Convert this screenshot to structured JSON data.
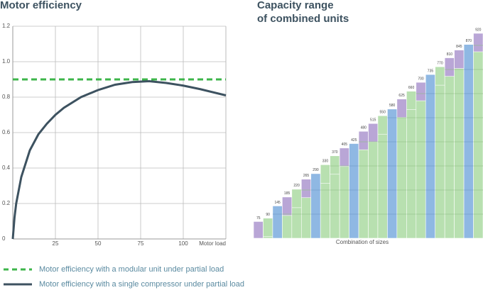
{
  "chart_data": [
    {
      "type": "line",
      "title": "Motor efficiency",
      "xlabel": "Motor load",
      "xlim": [
        0,
        125
      ],
      "xticks": [
        25,
        50,
        75,
        100
      ],
      "ylim": [
        0,
        1.2
      ],
      "yticks": [
        0,
        0.2,
        0.4,
        0.6,
        0.8,
        {
          "value": 1,
          "label": "1.0"
        },
        1.2
      ],
      "grid": true,
      "legend": "bottom",
      "series": [
        {
          "name": "Motor efficiency with a modular unit under partial load",
          "color": "#3db54a",
          "dashed": true,
          "x": [
            0,
            125
          ],
          "values": [
            0.9,
            0.9
          ]
        },
        {
          "name": "Motor efficiency with a single compressor under partial load",
          "color": "#3d5260",
          "dashed": false,
          "x": [
            0,
            1,
            2,
            5,
            10,
            15,
            20,
            25,
            30,
            40,
            50,
            60,
            70,
            80,
            90,
            100,
            110,
            125
          ],
          "values": [
            0,
            0.12,
            0.2,
            0.35,
            0.5,
            0.59,
            0.65,
            0.7,
            0.74,
            0.8,
            0.84,
            0.87,
            0.885,
            0.89,
            0.88,
            0.865,
            0.845,
            0.81
          ]
        }
      ]
    },
    {
      "type": "bar",
      "title": "Capacity range\nof combined units",
      "xlabel": "Combination of sizes",
      "values": [
        75,
        90,
        145,
        185,
        220,
        265,
        290,
        330,
        370,
        405,
        425,
        480,
        515,
        550,
        580,
        625,
        660,
        700,
        735,
        770,
        810,
        845,
        870,
        920
      ],
      "base_color": "#b8e0b0",
      "colors": [
        "#b9a6d6",
        "#b8e0b0",
        "#8fb8e3",
        "#b9a6d6",
        "#b8e0b0",
        "#b9a6d6",
        "#8fb8e3",
        "#b8e0b0",
        "#b8e0b0",
        "#b9a6d6",
        "#8fb8e3",
        "#b9a6d6",
        "#b9a6d6",
        "#b8e0b0",
        "#8fb8e3",
        "#b9a6d6",
        "#b8e0b0",
        "#b9a6d6",
        "#8fb8e3",
        "#b8e0b0",
        "#b9a6d6",
        "#b9a6d6",
        "#8fb8e3",
        "#b9a6d6"
      ]
    }
  ]
}
